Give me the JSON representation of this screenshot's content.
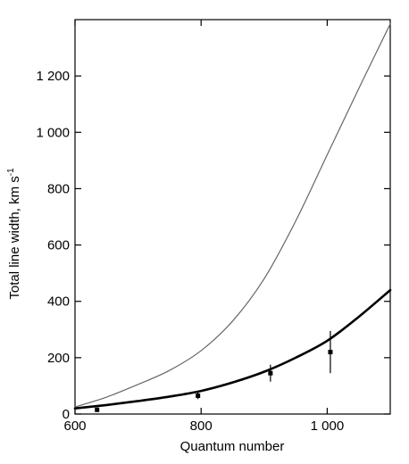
{
  "chart_data": {
    "type": "line",
    "title": "",
    "xlabel": "Quantum number",
    "ylabel": "Total line width, km s",
    "ylabel_superscript": "-1",
    "xlim": [
      600,
      1100
    ],
    "ylim": [
      0,
      1400
    ],
    "x_ticks": [
      600,
      800,
      1000
    ],
    "x_tick_labels": [
      "600",
      "800",
      "1 000"
    ],
    "y_ticks": [
      0,
      200,
      400,
      600,
      800,
      1000,
      1200
    ],
    "y_tick_labels": [
      "0",
      "200",
      "400",
      "600",
      "800",
      "1 000",
      "1 200"
    ],
    "grid": false,
    "legend": "none",
    "series": [
      {
        "style": "thin",
        "color": "#666666",
        "x": [
          600,
          650,
          700,
          750,
          800,
          850,
          900,
          950,
          1000,
          1050,
          1100
        ],
        "y": [
          25,
          60,
          105,
          155,
          225,
          330,
          480,
          685,
          920,
          1155,
          1385
        ]
      },
      {
        "style": "thick",
        "color": "#000000",
        "x": [
          600,
          650,
          700,
          750,
          800,
          850,
          900,
          950,
          1000,
          1050,
          1100
        ],
        "y": [
          20,
          32,
          46,
          62,
          82,
          112,
          150,
          200,
          260,
          345,
          440
        ]
      },
      {
        "style": "points",
        "color": "#000000",
        "x": [
          635,
          795,
          910,
          1005
        ],
        "y": [
          15,
          65,
          145,
          220
        ],
        "err": [
          5,
          12,
          30,
          75
        ]
      }
    ]
  }
}
